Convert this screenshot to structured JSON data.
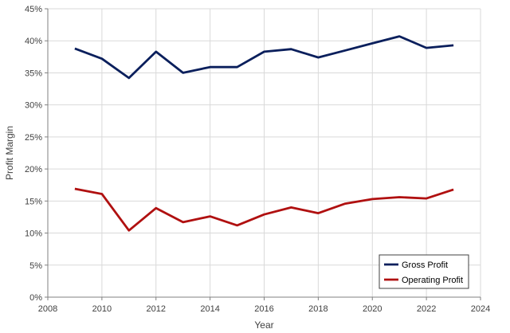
{
  "chart_data": {
    "type": "line",
    "title": "",
    "xlabel": "Year",
    "ylabel": "Profit Margin",
    "xlim": [
      2008,
      2024
    ],
    "ylim": [
      0,
      45
    ],
    "x_ticks": [
      2008,
      2010,
      2012,
      2014,
      2016,
      2018,
      2020,
      2022,
      2024
    ],
    "y_ticks": [
      0,
      5,
      10,
      15,
      20,
      25,
      30,
      35,
      40,
      45
    ],
    "y_tick_labels": [
      "0%",
      "5%",
      "10%",
      "15%",
      "20%",
      "25%",
      "30%",
      "35%",
      "40%",
      "45%"
    ],
    "grid": true,
    "legend_position": "bottom-right",
    "x": [
      2009,
      2010,
      2011,
      2012,
      2013,
      2014,
      2015,
      2016,
      2017,
      2018,
      2019,
      2020,
      2021,
      2022,
      2023
    ],
    "series": [
      {
        "name": "Gross Profit",
        "color": "#0a1f5c",
        "values": [
          38.8,
          37.2,
          34.2,
          38.3,
          35.0,
          35.9,
          35.9,
          38.3,
          38.7,
          37.4,
          38.5,
          39.6,
          40.7,
          38.9,
          39.3
        ]
      },
      {
        "name": "Operating Profit",
        "color": "#b01010",
        "values": [
          16.9,
          16.1,
          10.4,
          13.9,
          11.7,
          12.6,
          11.2,
          12.9,
          14.0,
          13.1,
          14.6,
          15.3,
          15.6,
          15.4,
          16.8
        ]
      }
    ]
  }
}
